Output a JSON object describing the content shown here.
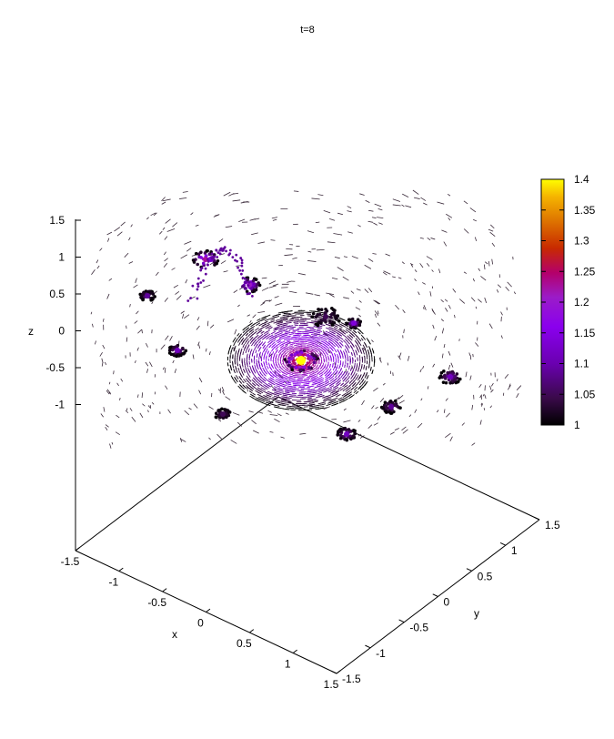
{
  "chart_data": {
    "type": "scatter",
    "subtype": "3d-vector-field",
    "title": "t=8",
    "xlabel": "x",
    "ylabel": "y",
    "zlabel": "z",
    "xlim": [
      -1.5,
      1.5
    ],
    "ylim": [
      -1.5,
      1.5
    ],
    "zlim": [
      -1.5,
      1.5
    ],
    "x_ticks": [
      "-1.5",
      "-1",
      "-0.5",
      "0",
      "0.5",
      "1",
      "1.5"
    ],
    "y_ticks": [
      "-1.5",
      "-1",
      "-0.5",
      "0",
      "0.5",
      "1",
      "1.5"
    ],
    "z_ticks": [
      "-1.5",
      "-1",
      "-0.5",
      "0",
      "0.5",
      "1",
      "1.5"
    ],
    "colorbar": {
      "range": [
        1,
        1.4
      ],
      "tick_labels": [
        "1",
        "1.05",
        "1.1",
        "1.15",
        "1.2",
        "1.25",
        "1.3",
        "1.35",
        "1.4"
      ],
      "palette": [
        "#000000",
        "#3a0a4a",
        "#6a00b0",
        "#8a00ee",
        "#9b1cc8",
        "#b4006a",
        "#c82a00",
        "#e07a00",
        "#f5b400",
        "#ffff00"
      ]
    },
    "clusters": [
      {
        "role": "main-vortex",
        "value": 1.4
      },
      {
        "role": "blob",
        "value": 1.2
      },
      {
        "role": "blob",
        "value": 1.18
      },
      {
        "role": "blob",
        "value": 1.1
      },
      {
        "role": "blob",
        "value": 1.08
      },
      {
        "role": "blob",
        "value": 1.1
      },
      {
        "role": "blob",
        "value": 1.08
      },
      {
        "role": "blob",
        "value": 1.1
      },
      {
        "role": "blob",
        "value": 1.05
      },
      {
        "role": "blob",
        "value": 1.12
      },
      {
        "role": "blob",
        "value": 1.05
      }
    ]
  }
}
